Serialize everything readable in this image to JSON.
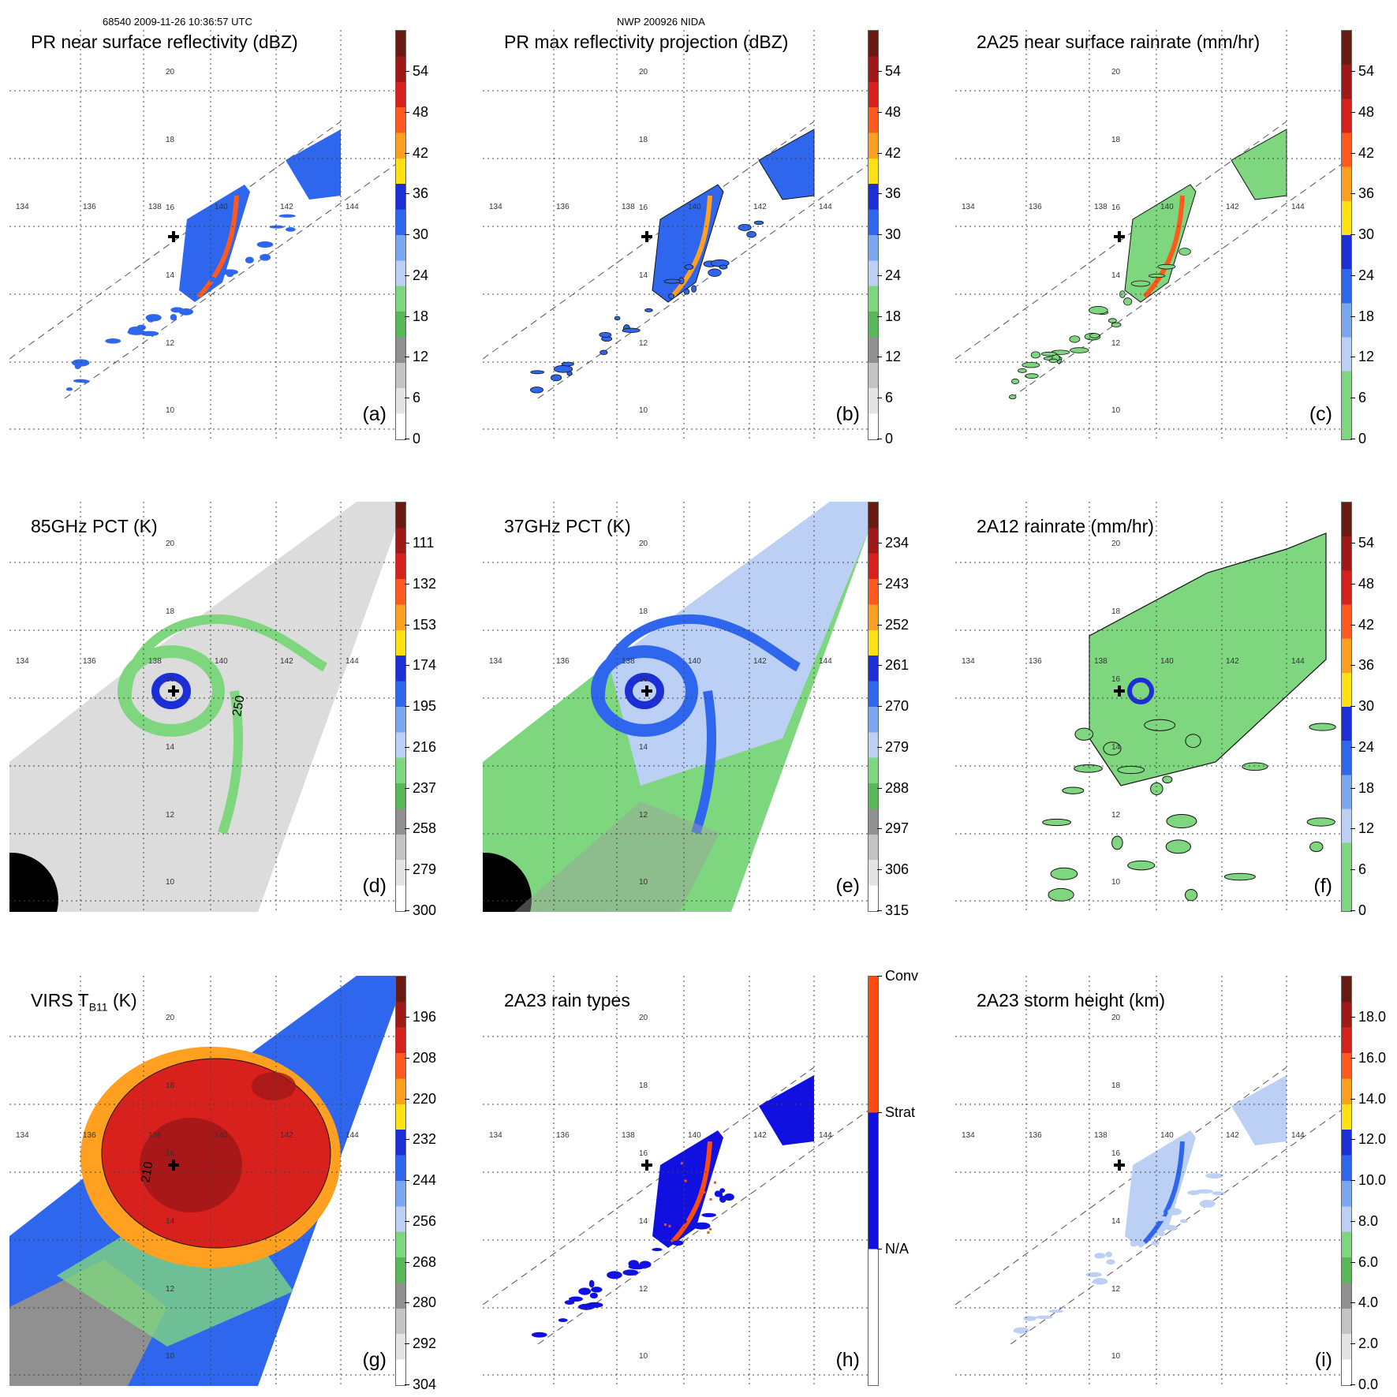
{
  "header": {
    "left": "68540 2009-11-26 10:36:57 UTC",
    "middle": "NWP 200926 NIDA"
  },
  "colors": {
    "grid": "#444444",
    "swath": "#555555",
    "contour": "#111111"
  },
  "axes": {
    "lat_labels": [
      "20",
      "18",
      "16",
      "14",
      "12",
      "10"
    ],
    "lon_labels": [
      "134",
      "136",
      "138",
      "140",
      "142",
      "144"
    ]
  },
  "panels": [
    {
      "id": "a",
      "label": "(a)",
      "title": "PR near surface reflectivity (dBZ)",
      "kind": "pr",
      "colorbar": {
        "ticks": [
          "54",
          "48",
          "42",
          "36",
          "30",
          "24",
          "18",
          "12",
          "6",
          "0"
        ],
        "colors": [
          "#6b1a12",
          "#a01818",
          "#d8201c",
          "#ff5a1e",
          "#ffa020",
          "#ffe015",
          "#1c2fd6",
          "#2e66ee",
          "#7aa8f0",
          "#bcd0f5",
          "#7ed67e",
          "#58b858",
          "#909090",
          "#c4c4c4",
          "#e4e4e4",
          "#ffffff"
        ]
      }
    },
    {
      "id": "b",
      "label": "(b)",
      "title": "PR max reflectivity projection (dBZ)",
      "kind": "pr",
      "colorbar": {
        "ticks": [
          "54",
          "48",
          "42",
          "36",
          "30",
          "24",
          "18",
          "12",
          "6",
          "0"
        ],
        "colors": [
          "#6b1a12",
          "#a01818",
          "#d8201c",
          "#ff5a1e",
          "#ffa020",
          "#ffe015",
          "#1c2fd6",
          "#2e66ee",
          "#7aa8f0",
          "#bcd0f5",
          "#7ed67e",
          "#58b858",
          "#909090",
          "#c4c4c4",
          "#e4e4e4",
          "#ffffff"
        ]
      }
    },
    {
      "id": "c",
      "label": "(c)",
      "title": "2A25 near surface rainrate (mm/hr)",
      "kind": "pr",
      "colorbar": {
        "ticks": [
          "54",
          "48",
          "42",
          "36",
          "30",
          "24",
          "18",
          "12",
          "6",
          "0"
        ],
        "colors": [
          "#6b1a12",
          "#a01818",
          "#d8201c",
          "#ff5a1e",
          "#ffa020",
          "#ffe015",
          "#1c2fd6",
          "#2e66ee",
          "#7aa8f0",
          "#bcd0f5",
          "#7ed67e",
          "#7ed67e"
        ]
      }
    },
    {
      "id": "d",
      "label": "(d)",
      "title": "85GHz PCT (K)",
      "kind": "tmi",
      "colorbar": {
        "ticks": [
          "111",
          "132",
          "153",
          "174",
          "195",
          "216",
          "237",
          "258",
          "279",
          "300"
        ],
        "colors": [
          "#6b1a12",
          "#a01818",
          "#d8201c",
          "#ff5a1e",
          "#ffa020",
          "#ffe015",
          "#1c2fd6",
          "#2e66ee",
          "#7aa8f0",
          "#bcd0f5",
          "#7ed67e",
          "#58b858",
          "#909090",
          "#c4c4c4",
          "#e4e4e4",
          "#ffffff"
        ]
      }
    },
    {
      "id": "e",
      "label": "(e)",
      "title": "37GHz PCT (K)",
      "kind": "tmi",
      "colorbar": {
        "ticks": [
          "234",
          "243",
          "252",
          "261",
          "270",
          "279",
          "288",
          "297",
          "306",
          "315"
        ],
        "colors": [
          "#6b1a12",
          "#a01818",
          "#d8201c",
          "#ff5a1e",
          "#ffa020",
          "#ffe015",
          "#1c2fd6",
          "#2e66ee",
          "#7aa8f0",
          "#bcd0f5",
          "#7ed67e",
          "#58b858",
          "#909090",
          "#c4c4c4",
          "#e4e4e4",
          "#ffffff"
        ]
      }
    },
    {
      "id": "f",
      "label": "(f)",
      "title": "2A12 rainrate (mm/hr)",
      "kind": "tmi",
      "colorbar": {
        "ticks": [
          "54",
          "48",
          "42",
          "36",
          "30",
          "24",
          "18",
          "12",
          "6",
          "0"
        ],
        "colors": [
          "#6b1a12",
          "#a01818",
          "#d8201c",
          "#ff5a1e",
          "#ffa020",
          "#ffe015",
          "#1c2fd6",
          "#2e66ee",
          "#7aa8f0",
          "#bcd0f5",
          "#7ed67e",
          "#7ed67e"
        ]
      }
    },
    {
      "id": "g",
      "label": "(g)",
      "title_main": "VIRS T",
      "title_sub": "B11",
      "title_unit": " (K)",
      "kind": "virs",
      "colorbar": {
        "ticks": [
          "196",
          "208",
          "220",
          "232",
          "244",
          "256",
          "268",
          "280",
          "292",
          "304"
        ],
        "colors": [
          "#6b1a12",
          "#a01818",
          "#d8201c",
          "#ff5a1e",
          "#ffa020",
          "#ffe015",
          "#1c2fd6",
          "#2e66ee",
          "#7aa8f0",
          "#bcd0f5",
          "#7ed67e",
          "#58b858",
          "#909090",
          "#c4c4c4",
          "#e4e4e4",
          "#ffffff"
        ]
      }
    },
    {
      "id": "h",
      "label": "(h)",
      "title": "2A23 rain types",
      "kind": "pr",
      "colorbar": {
        "ticks": [
          "Conv",
          "Strat",
          "N/A"
        ],
        "colors": [
          "#ff4a10",
          "#1010e0",
          "#ffffff"
        ]
      }
    },
    {
      "id": "i",
      "label": "(i)",
      "title": "2A23 storm height (km)",
      "kind": "pr",
      "colorbar": {
        "ticks": [
          "18.0",
          "16.0",
          "14.0",
          "12.0",
          "10.0",
          "8.0",
          "6.0",
          "4.0",
          "2.0",
          "0.0"
        ],
        "colors": [
          "#6b1a12",
          "#a01818",
          "#d8201c",
          "#ff5a1e",
          "#ffa020",
          "#ffe015",
          "#1c2fd6",
          "#2e66ee",
          "#7aa8f0",
          "#bcd0f5",
          "#7ed67e",
          "#58b858",
          "#909090",
          "#c4c4c4",
          "#e4e4e4",
          "#ffffff"
        ]
      }
    }
  ],
  "annotations": {
    "d_contour": "250",
    "g_contour": "210"
  }
}
